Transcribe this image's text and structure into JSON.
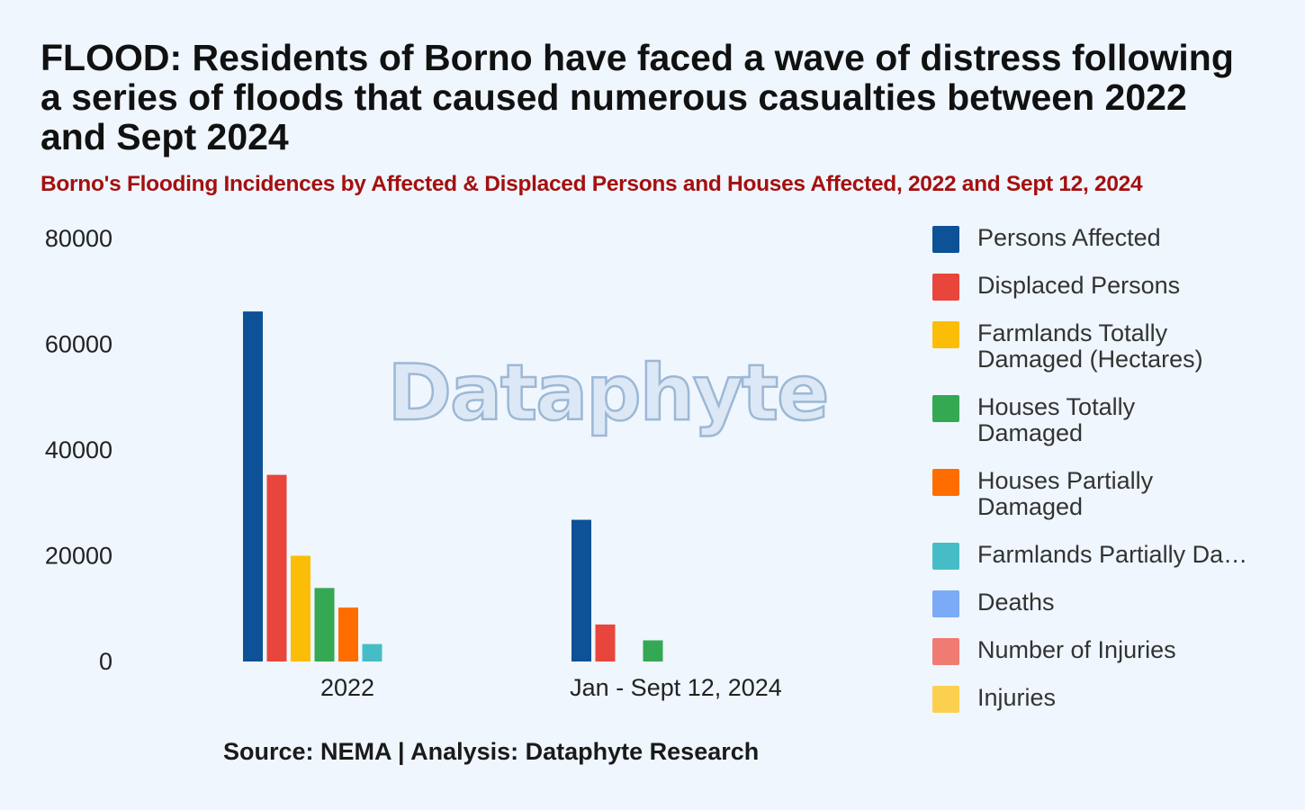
{
  "title": "FLOOD: Residents of Borno have faced a wave of distress following a series of floods that caused numerous casualties between 2022 and Sept 2024",
  "subtitle": "Borno's Flooding Incidences by Affected & Displaced Persons and Houses Affected, 2022 and Sept 12, 2024",
  "watermark": "Dataphyte",
  "source": "Source: NEMA | Analysis: Dataphyte Research",
  "chart_data": {
    "type": "bar",
    "title": "",
    "xlabel": "",
    "ylabel": "",
    "ylim": [
      0,
      80000
    ],
    "yticks": [
      0,
      20000,
      40000,
      60000,
      80000
    ],
    "grid": false,
    "legend_position": "right",
    "categories": [
      "2022",
      "Jan - Sept 12, 2024"
    ],
    "series": [
      {
        "name": "Persons Affected",
        "color": "#0d5196",
        "values": [
          66200,
          26800
        ]
      },
      {
        "name": "Displaced Persons",
        "color": "#e8453c",
        "values": [
          35300,
          7000
        ]
      },
      {
        "name": "Farmlands Totally Damaged (Hectares)",
        "color": "#fbbd07",
        "values": [
          20000,
          0
        ]
      },
      {
        "name": "Houses Totally Damaged",
        "color": "#34a853",
        "values": [
          13900,
          4000
        ]
      },
      {
        "name": "Houses Partially Damaged",
        "color": "#ff6d01",
        "values": [
          10200,
          0
        ]
      },
      {
        "name": "Farmlands Partially Damaged",
        "color": "#46bdc6",
        "values": [
          3300,
          0
        ]
      },
      {
        "name": "Deaths",
        "color": "#7baaf7",
        "values": [
          0,
          0
        ]
      },
      {
        "name": "Number of Injuries",
        "color": "#f07b72",
        "values": [
          0,
          0
        ]
      },
      {
        "name": "Injuries",
        "color": "#fcd04f",
        "values": [
          0,
          0
        ]
      }
    ]
  }
}
